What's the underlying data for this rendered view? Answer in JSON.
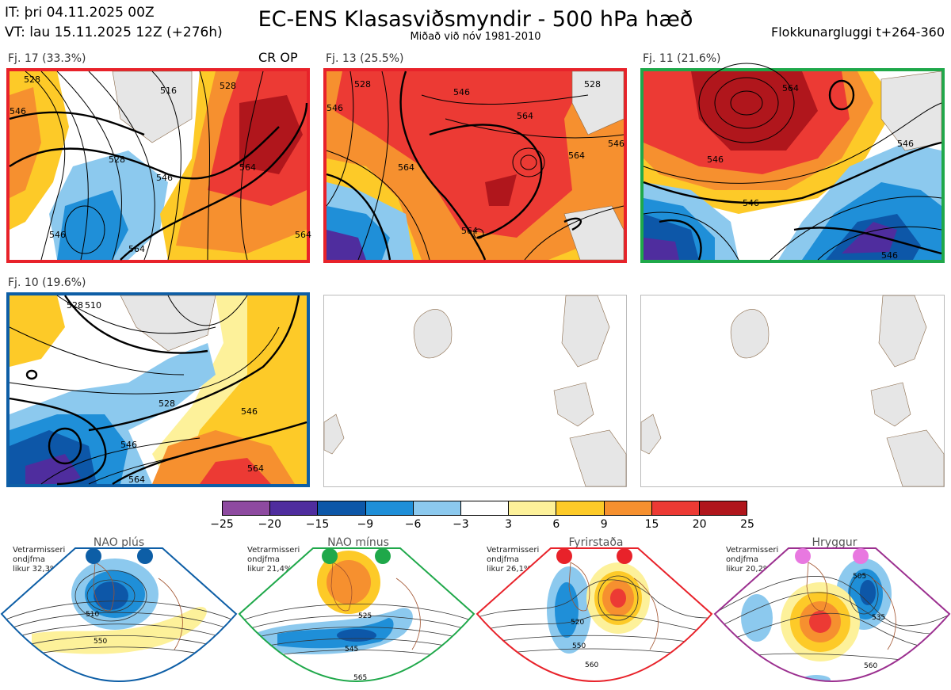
{
  "header": {
    "it": "IT: þri 04.11.2025 00Z",
    "vt": "VT: lau 15.11.2025 12Z  (+276h)",
    "title": "EC-ENS Klasasviðsmyndir - 500 hPa hæð",
    "subtitle": "Miðað við nóv 1981-2010",
    "window": "Flokkunargluggi t+264-360"
  },
  "clusters": [
    {
      "label": "Fj. 17 (33.3%)",
      "border_color": "#e8222a",
      "tag": "CR OP",
      "contour_labels": [
        "528",
        "516",
        "528",
        "528",
        "546",
        "546",
        "564",
        "564",
        "546",
        "564"
      ]
    },
    {
      "label": "Fj. 13 (25.5%)",
      "border_color": "#e8222a",
      "contour_labels": [
        "528",
        "546",
        "546",
        "528",
        "564",
        "564",
        "546",
        "564",
        "564"
      ]
    },
    {
      "label": "Fj. 11 (21.6%)",
      "border_color": "#1fa84a",
      "contour_labels": [
        "564",
        "546",
        "546",
        "546",
        "546"
      ]
    },
    {
      "label": "Fj. 10 (19.6%)",
      "border_color": "#0d5ea6",
      "contour_labels": [
        "528",
        "510",
        "528",
        "546",
        "546",
        "564",
        "564"
      ]
    }
  ],
  "colorbar": {
    "ticks": [
      "−25",
      "−20",
      "−15",
      "−9",
      "−6",
      "−3",
      "3",
      "6",
      "9",
      "15",
      "20",
      "25"
    ],
    "colors": [
      "#8e4aa0",
      "#4f2d9e",
      "#0d57a8",
      "#1f8fd8",
      "#8cc9ee",
      "#ffffff",
      "#fdf19a",
      "#fdca28",
      "#f6902f",
      "#ec3a34",
      "#b0161c"
    ]
  },
  "regimes": [
    {
      "name": "NAO plús",
      "note": "Vetrarmisseri\nondjfma\nlikur 32,3%",
      "color": "#0d5ea6",
      "contour_labels": [
        "510",
        "550"
      ]
    },
    {
      "name": "NAO mínus",
      "note": "Vetrarmisseri\nondjfma\nlikur 21,4%",
      "color": "#1fa84a",
      "contour_labels": [
        "525",
        "545",
        "565"
      ]
    },
    {
      "name": "Fyrirstaða",
      "note": "Vetrarmisseri\nondjfma\nlikur 26,1%",
      "color": "#e8222a",
      "contour_labels": [
        "520",
        "550",
        "560"
      ]
    },
    {
      "name": "Hryggur",
      "note": "Vetrarmisseri\nondjfma\nlikur 20,2%",
      "color": "#9b2f8f",
      "contour_labels": [
        "505",
        "535",
        "560"
      ]
    }
  ]
}
